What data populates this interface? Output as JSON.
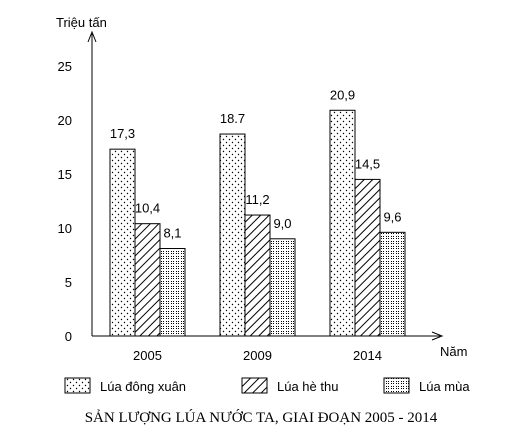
{
  "chart_data": {
    "type": "bar",
    "ylabel": "Triệu tấn",
    "xlabel": "Năm",
    "categories": [
      "2005",
      "2009",
      "2014"
    ],
    "ylim": [
      0,
      25
    ],
    "yticks": [
      "0",
      "5",
      "10",
      "15",
      "20",
      "25"
    ],
    "series": [
      {
        "name": "Lúa đông xuân",
        "values": [
          17.3,
          18.7,
          20.9
        ],
        "labels": [
          "17,3",
          "18.7",
          "20,9"
        ],
        "pattern": "dots"
      },
      {
        "name": "Lúa hè thu",
        "values": [
          10.4,
          11.2,
          14.5
        ],
        "labels": [
          "10,4",
          "11,2",
          "14,5"
        ],
        "pattern": "hatch"
      },
      {
        "name": "Lúa mùa",
        "values": [
          8.1,
          9.0,
          9.6
        ],
        "labels": [
          "8,1",
          "9,0",
          "9,6"
        ],
        "pattern": "grid"
      }
    ],
    "grid": false,
    "legend_position": "bottom"
  },
  "caption": "SẢN LƯỢNG LÚA NƯỚC TA, GIAI ĐOẠN 2005 - 2014"
}
